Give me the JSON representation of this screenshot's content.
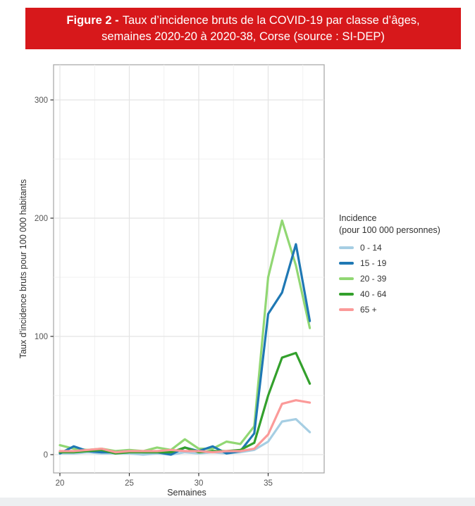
{
  "banner": {
    "figure_label": "Figure 2 -",
    "title_line1": "Taux d’incidence bruts de la COVID-19 par classe d’âges,",
    "title_line2": "semaines 2020-20 à 2020-38, Corse (source : SI-DEP)",
    "background_color": "#d7181b",
    "text_color": "#ffffff"
  },
  "chart_data": {
    "type": "line",
    "title": "",
    "xlabel": "Semaines",
    "ylabel": "Taux d'incidence bruts pour 100 000 habitants",
    "x": [
      20,
      21,
      22,
      23,
      24,
      25,
      26,
      27,
      28,
      29,
      30,
      31,
      32,
      33,
      34,
      35,
      36,
      37,
      38
    ],
    "x_ticks": [
      20,
      25,
      30,
      35
    ],
    "y_ticks": [
      0,
      100,
      200,
      300
    ],
    "x_minor": [
      22.5,
      27.5,
      32.5,
      37.5
    ],
    "y_minor": [
      50,
      150,
      250
    ],
    "xlim": [
      19.5,
      39
    ],
    "ylim": [
      -15,
      330
    ],
    "grid": true,
    "legend": {
      "title_line1": "Incidence",
      "title_line2": "(pour 100 000 personnes)",
      "position": "right"
    },
    "series": [
      {
        "name": "0 - 14",
        "color": "#a6cee3",
        "values": [
          1,
          1,
          2,
          1,
          1,
          1,
          0,
          1,
          0,
          2,
          1,
          2,
          1,
          2,
          4,
          11,
          28,
          30,
          19
        ]
      },
      {
        "name": "15 - 19",
        "color": "#1f78b4",
        "values": [
          1,
          7,
          3,
          2,
          2,
          3,
          2,
          2,
          0,
          6,
          3,
          7,
          1,
          3,
          18,
          119,
          137,
          178,
          113
        ]
      },
      {
        "name": "20 - 39",
        "color": "#91d773",
        "values": [
          8,
          5,
          4,
          5,
          3,
          4,
          3,
          6,
          4,
          13,
          5,
          5,
          11,
          9,
          24,
          150,
          198,
          160,
          107
        ]
      },
      {
        "name": "40 - 64",
        "color": "#33a02c",
        "values": [
          2,
          2,
          3,
          4,
          1,
          2,
          2,
          2,
          2,
          6,
          2,
          3,
          3,
          4,
          10,
          50,
          82,
          86,
          60
        ]
      },
      {
        "name": "65 +",
        "color": "#fb9a99",
        "values": [
          3,
          3,
          4,
          5,
          2,
          3,
          3,
          3,
          4,
          3,
          3,
          2,
          3,
          3,
          5,
          17,
          43,
          46,
          44
        ]
      }
    ]
  }
}
